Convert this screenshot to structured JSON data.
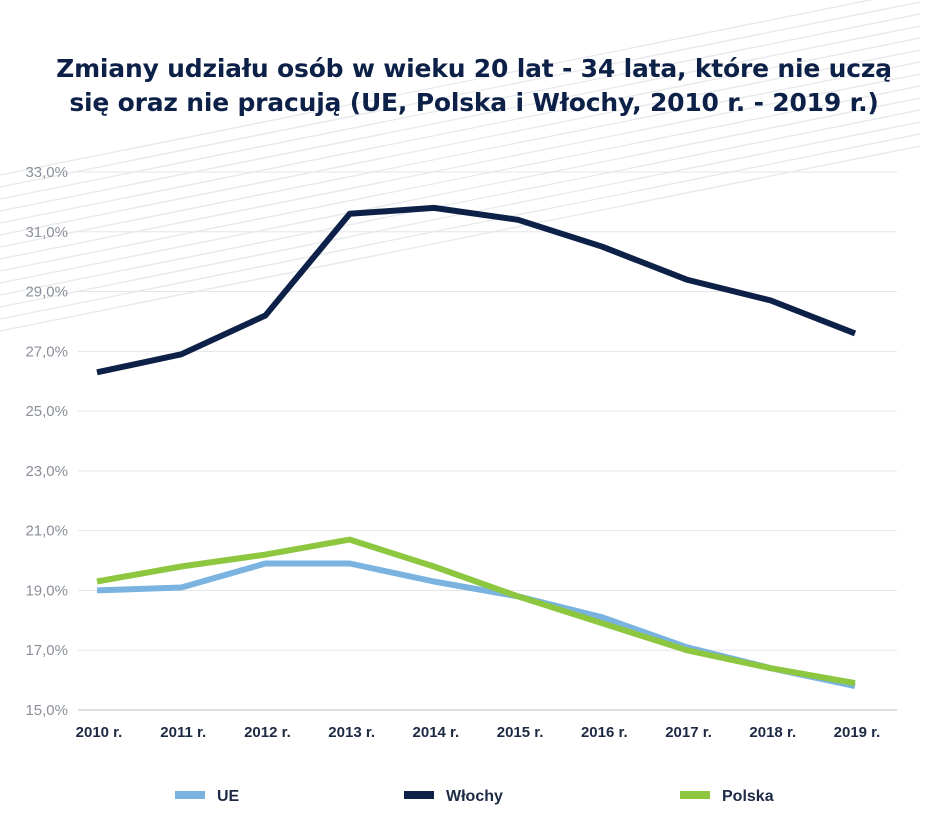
{
  "title": {
    "line1": "Zmiany udziału osób w wieku 20 lat - 34 lata, które nie uczą",
    "line2": "się oraz nie pracują (UE, Polska i Włochy, 2010 r. - 2019 r.)"
  },
  "chart_data": {
    "type": "line",
    "title": "Zmiany udziału osób w wieku 20 lat - 34 lata, które nie uczą się oraz nie pracują (UE, Polska i Włochy, 2010 r. - 2019 r.)",
    "categories": [
      "2010 r.",
      "2011 r.",
      "2012 r.",
      "2013 r.",
      "2014 r.",
      "2015 r.",
      "2016 r.",
      "2017 r.",
      "2018 r.",
      "2019 r."
    ],
    "ylim": [
      15,
      33
    ],
    "yticks": [
      15,
      17,
      19,
      21,
      23,
      25,
      27,
      29,
      31,
      33
    ],
    "ytick_labels": [
      "15,0%",
      "17,0%",
      "19,0%",
      "21,0%",
      "23,0%",
      "25,0%",
      "27,0%",
      "29,0%",
      "31,0%",
      "33,0%"
    ],
    "grid": true,
    "legend_position": "bottom",
    "series": [
      {
        "name": "UE",
        "color": "#7ab3e0",
        "values": [
          19.0,
          19.1,
          19.9,
          19.9,
          19.3,
          18.8,
          18.1,
          17.1,
          16.4,
          15.8
        ]
      },
      {
        "name": "Włochy",
        "color": "#0d2148",
        "values": [
          26.3,
          26.9,
          28.2,
          31.6,
          31.8,
          31.4,
          30.5,
          29.4,
          28.7,
          27.6
        ]
      },
      {
        "name": "Polska",
        "color": "#8dc63f",
        "values": [
          19.3,
          19.8,
          20.2,
          20.7,
          19.8,
          18.8,
          17.9,
          17.0,
          16.4,
          15.9
        ]
      }
    ]
  }
}
